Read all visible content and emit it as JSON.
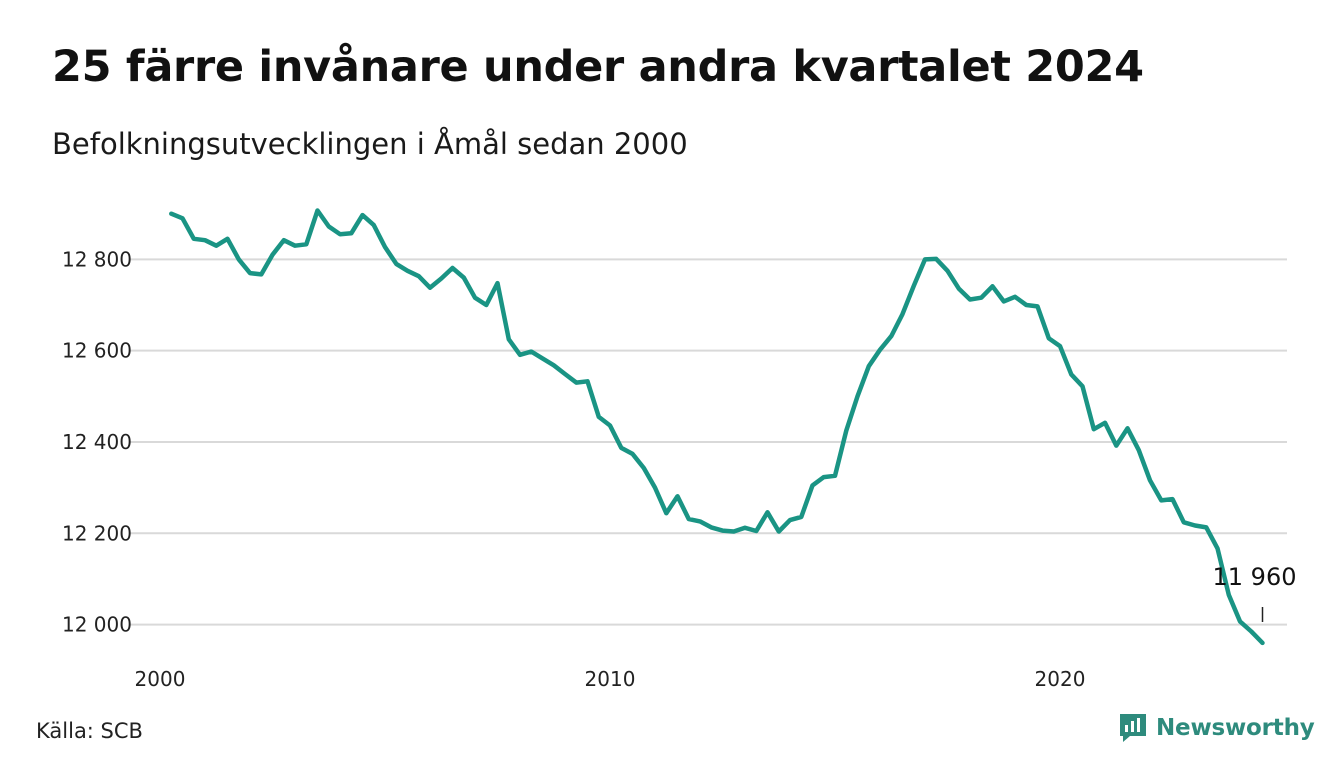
{
  "header": {
    "title": "25 färre invånare under andra kvartalet 2024",
    "subtitle": "Befolkningsutvecklingen i Åmål sedan 2000"
  },
  "footer": {
    "source": "Källa: SCB",
    "brand": "Newsworthy",
    "brand_icon": "bar-chart-speech-icon"
  },
  "colors": {
    "line": "#1a9484",
    "grid": "#d9d9d9",
    "brand": "#2e8b7d"
  },
  "chart_data": {
    "type": "line",
    "title": "25 färre invånare under andra kvartalet 2024",
    "subtitle": "Befolkningsutvecklingen i Åmål sedan 2000",
    "xlabel": "",
    "ylabel": "",
    "grid": "horizontal",
    "xlim": [
      2000.0,
      2025.0
    ],
    "ylim": [
      11940,
      12930
    ],
    "xticks": [
      {
        "value": 2000,
        "label": "2000"
      },
      {
        "value": 2010,
        "label": "2010"
      },
      {
        "value": 2020,
        "label": "2020"
      }
    ],
    "yticks": [
      {
        "value": 12000,
        "label": "12 000"
      },
      {
        "value": 12200,
        "label": "12 200"
      },
      {
        "value": 12400,
        "label": "12 400"
      },
      {
        "value": 12600,
        "label": "12 600"
      },
      {
        "value": 12800,
        "label": "12 800"
      }
    ],
    "end_label": "11 960",
    "series": [
      {
        "points": [
          [
            2000.25,
            12900
          ],
          [
            2000.5,
            12890
          ],
          [
            2000.75,
            12845
          ],
          [
            2001.0,
            12842
          ],
          [
            2001.25,
            12830
          ],
          [
            2001.5,
            12845
          ],
          [
            2001.75,
            12800
          ],
          [
            2002.0,
            12770
          ],
          [
            2002.25,
            12767
          ],
          [
            2002.5,
            12810
          ],
          [
            2002.75,
            12842
          ],
          [
            2003.0,
            12830
          ],
          [
            2003.25,
            12833
          ],
          [
            2003.5,
            12907
          ],
          [
            2003.75,
            12872
          ],
          [
            2004.0,
            12855
          ],
          [
            2004.25,
            12857
          ],
          [
            2004.5,
            12897
          ],
          [
            2004.75,
            12875
          ],
          [
            2005.0,
            12827
          ],
          [
            2005.25,
            12790
          ],
          [
            2005.5,
            12775
          ],
          [
            2005.75,
            12763
          ],
          [
            2006.0,
            12738
          ],
          [
            2006.25,
            12758
          ],
          [
            2006.5,
            12781
          ],
          [
            2006.75,
            12760
          ],
          [
            2007.0,
            12716
          ],
          [
            2007.25,
            12700
          ],
          [
            2007.5,
            12748
          ],
          [
            2007.75,
            12625
          ],
          [
            2008.0,
            12591
          ],
          [
            2008.25,
            12598
          ],
          [
            2008.5,
            12583
          ],
          [
            2008.75,
            12568
          ],
          [
            2009.0,
            12549
          ],
          [
            2009.25,
            12530
          ],
          [
            2009.5,
            12533
          ],
          [
            2009.75,
            12455
          ],
          [
            2010.0,
            12436
          ],
          [
            2010.25,
            12387
          ],
          [
            2010.5,
            12374
          ],
          [
            2010.75,
            12343
          ],
          [
            2011.0,
            12300
          ],
          [
            2011.25,
            12244
          ],
          [
            2011.5,
            12281
          ],
          [
            2011.75,
            12231
          ],
          [
            2012.0,
            12226
          ],
          [
            2012.25,
            12213
          ],
          [
            2012.5,
            12206
          ],
          [
            2012.75,
            12204
          ],
          [
            2013.0,
            12212
          ],
          [
            2013.25,
            12205
          ],
          [
            2013.5,
            12246
          ],
          [
            2013.75,
            12204
          ],
          [
            2014.0,
            12229
          ],
          [
            2014.25,
            12236
          ],
          [
            2014.5,
            12305
          ],
          [
            2014.75,
            12323
          ],
          [
            2015.0,
            12326
          ],
          [
            2015.25,
            12425
          ],
          [
            2015.5,
            12500
          ],
          [
            2015.75,
            12566
          ],
          [
            2016.0,
            12602
          ],
          [
            2016.25,
            12632
          ],
          [
            2016.5,
            12680
          ],
          [
            2016.75,
            12742
          ],
          [
            2017.0,
            12800
          ],
          [
            2017.25,
            12801
          ],
          [
            2017.5,
            12775
          ],
          [
            2017.75,
            12736
          ],
          [
            2018.0,
            12712
          ],
          [
            2018.25,
            12716
          ],
          [
            2018.5,
            12741
          ],
          [
            2018.75,
            12708
          ],
          [
            2019.0,
            12718
          ],
          [
            2019.25,
            12700
          ],
          [
            2019.5,
            12697
          ],
          [
            2019.75,
            12627
          ],
          [
            2020.0,
            12610
          ],
          [
            2020.25,
            12548
          ],
          [
            2020.5,
            12522
          ],
          [
            2020.75,
            12428
          ],
          [
            2021.0,
            12442
          ],
          [
            2021.25,
            12392
          ],
          [
            2021.5,
            12430
          ],
          [
            2021.75,
            12382
          ],
          [
            2022.0,
            12316
          ],
          [
            2022.25,
            12272
          ],
          [
            2022.5,
            12275
          ],
          [
            2022.75,
            12224
          ],
          [
            2023.0,
            12217
          ],
          [
            2023.25,
            12213
          ],
          [
            2023.5,
            12167
          ],
          [
            2023.75,
            12065
          ],
          [
            2024.0,
            12007
          ],
          [
            2024.25,
            11985
          ],
          [
            2024.5,
            11960
          ]
        ]
      }
    ]
  }
}
